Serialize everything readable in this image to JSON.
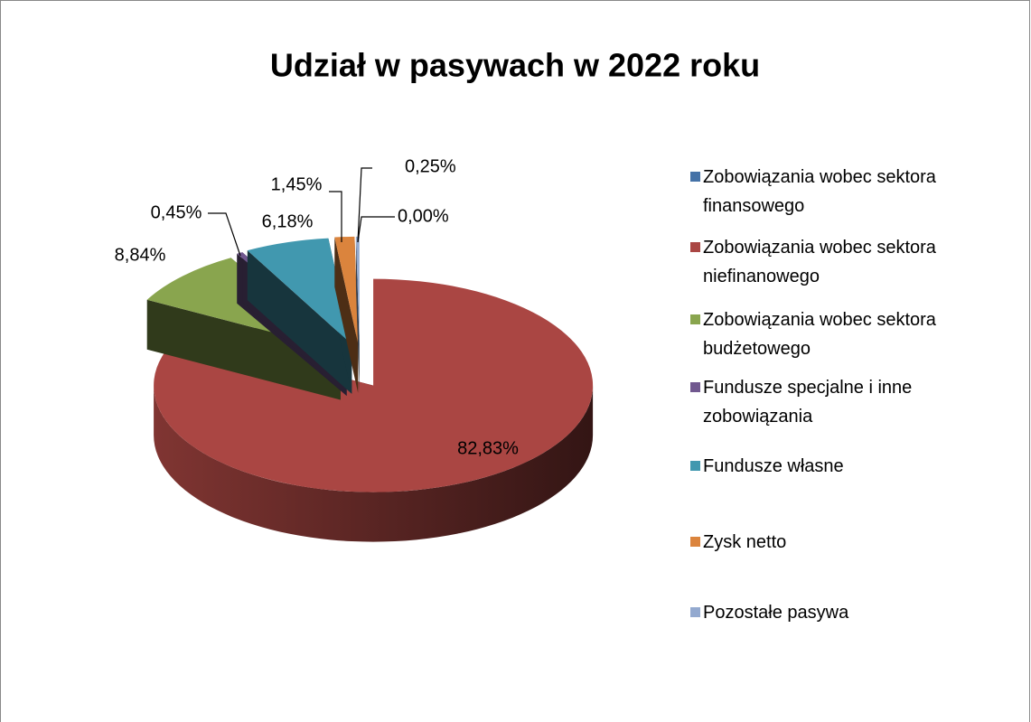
{
  "chart_data": {
    "type": "pie",
    "title": "Udział w pasywach w 2022 roku",
    "categories": [
      "Zobowiązania wobec sektora finansowego",
      "Zobowiązania wobec sektora niefinanowego",
      "Zobowiązania wobec sektora budżetowego",
      "Fundusze specjalne i inne zobowiązania",
      "Fundusze własne",
      "Zysk netto",
      "Pozostałe pasywa"
    ],
    "values": [
      0.0,
      82.83,
      8.84,
      0.45,
      6.18,
      1.45,
      0.25
    ],
    "value_labels": [
      "0,00%",
      "82,83%",
      "8,84%",
      "0,45%",
      "6,18%",
      "1,45%",
      "0,25%"
    ],
    "colors": [
      "#4572a7",
      "#aa4643",
      "#89a54e",
      "#71588f",
      "#4198af",
      "#db843d",
      "#93a9cf"
    ],
    "legend": "right"
  }
}
